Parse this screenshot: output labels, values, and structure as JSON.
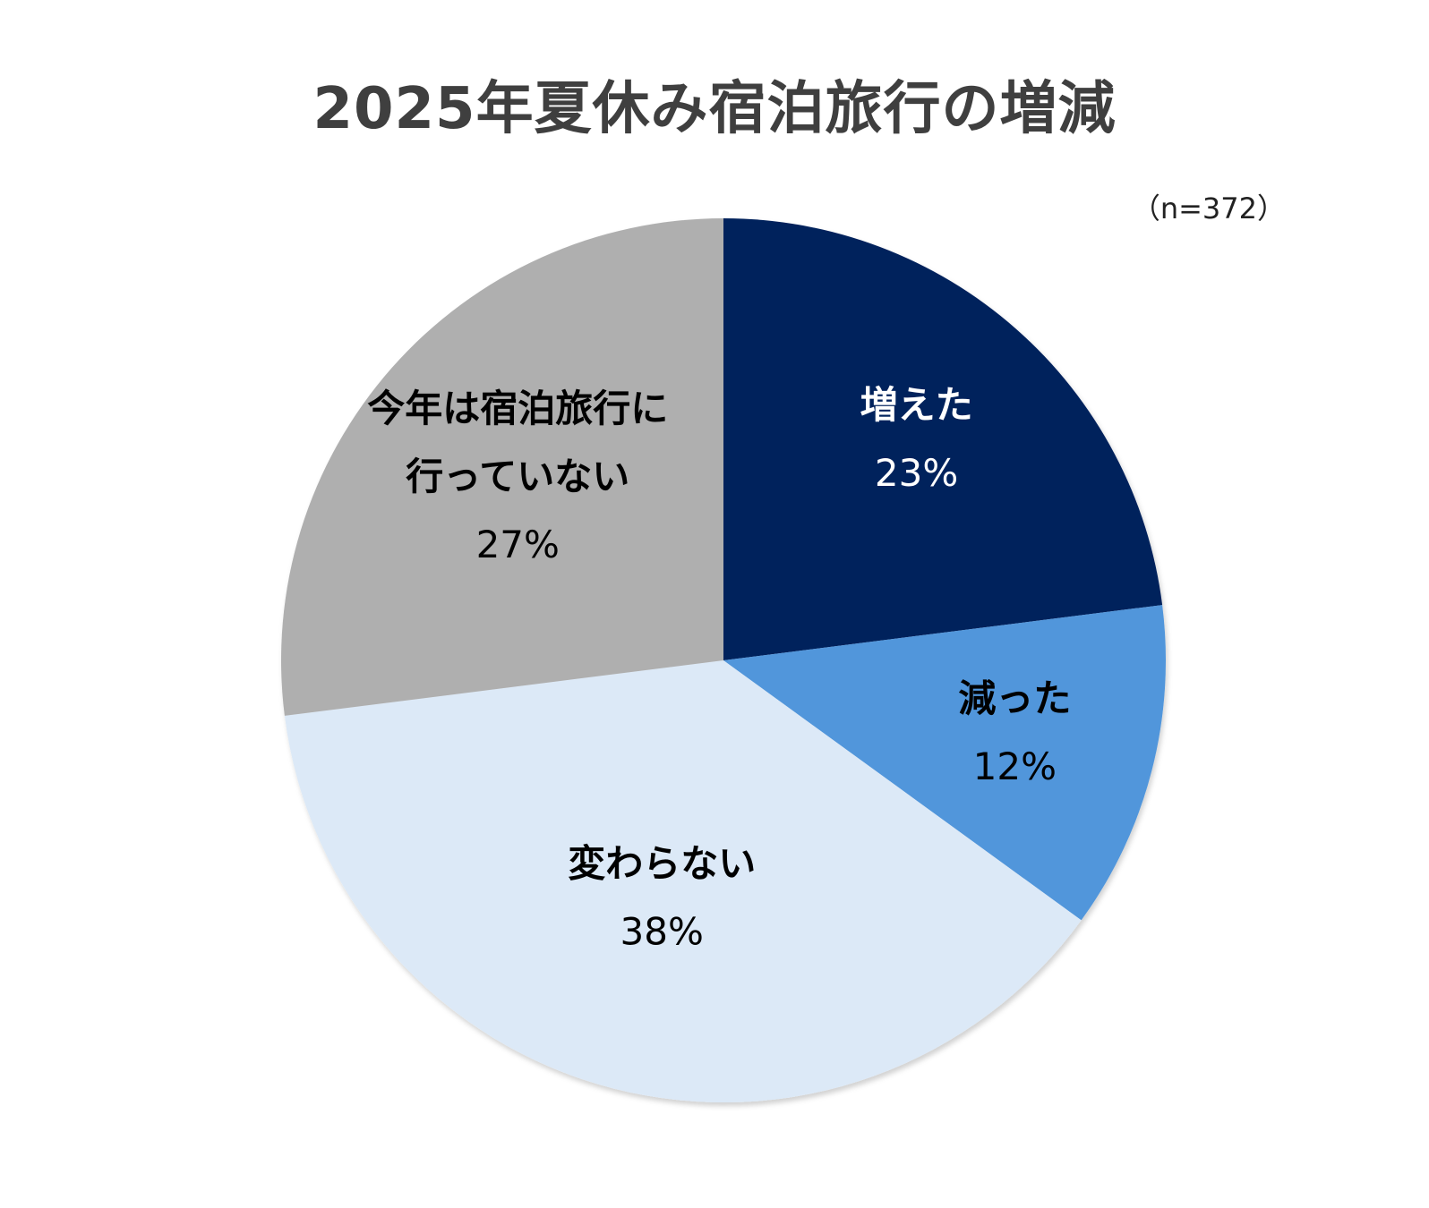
{
  "chart_data": {
    "type": "pie",
    "title": "2025年夏休み宿泊旅行の増減",
    "note": "（n=372）",
    "start_angle_deg": 0,
    "direction": "clockwise",
    "slices": [
      {
        "label": [
          "増えた"
        ],
        "value": 23,
        "value_label": "23%",
        "color": "#00205b",
        "text_color": "#ffffff"
      },
      {
        "label": [
          "減った"
        ],
        "value": 12,
        "value_label": "12%",
        "color": "#5196db",
        "text_color": "#000000"
      },
      {
        "label": [
          "変わらない"
        ],
        "value": 38,
        "value_label": "38%",
        "color": "#dce9f7",
        "text_color": "#000000"
      },
      {
        "label": [
          "今年は宿泊旅行に",
          "行っていない"
        ],
        "value": 27,
        "value_label": "27%",
        "color": "#afafaf",
        "text_color": "#000000"
      }
    ]
  }
}
